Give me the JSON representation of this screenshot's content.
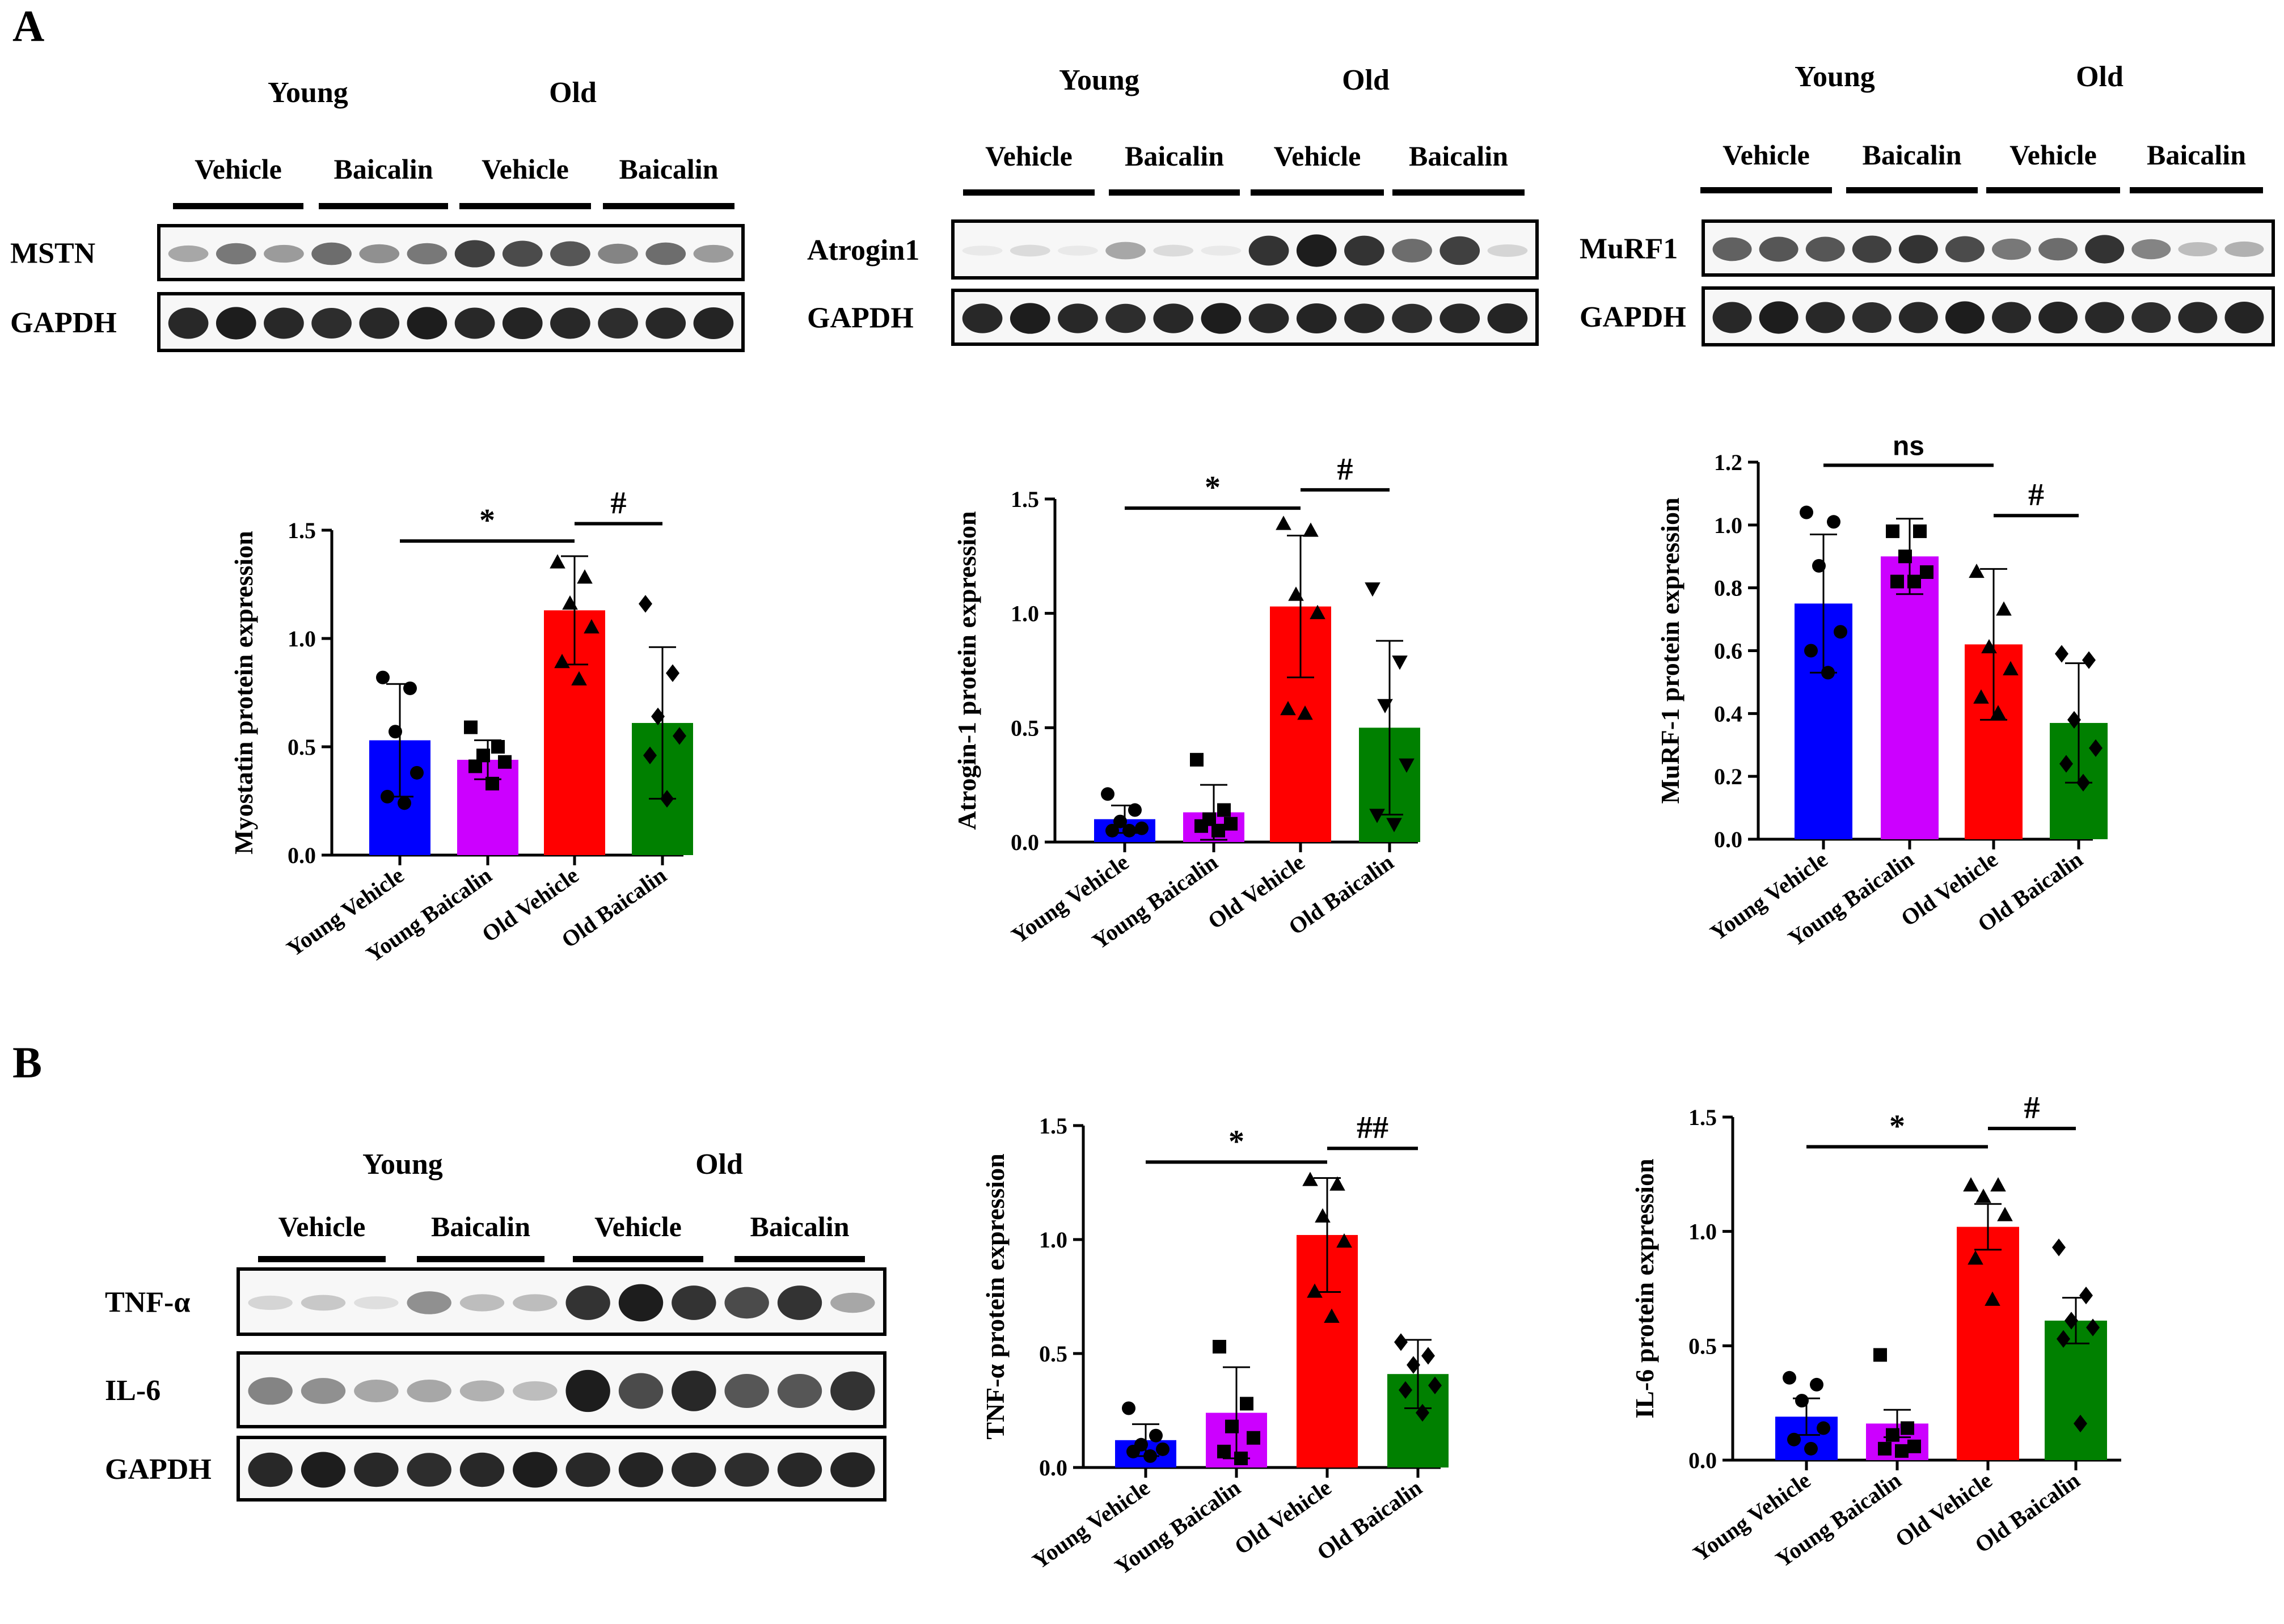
{
  "panels": {
    "a": "A",
    "b": "B"
  },
  "groups": {
    "young": "Young",
    "old": "Old"
  },
  "treatments": {
    "vehicle": "Vehicle",
    "baicalin": "Baicalin"
  },
  "blots": [
    {
      "id": "blot-myostatin",
      "rows": [
        "MSTN",
        "GAPDH"
      ]
    },
    {
      "id": "blot-atrogin",
      "rows": [
        "Atrogin1",
        "GAPDH"
      ]
    },
    {
      "id": "blot-murf",
      "rows": [
        "MuRF1",
        "GAPDH"
      ]
    },
    {
      "id": "blot-inflammation",
      "rows": [
        "TNF-α",
        "IL-6",
        "GAPDH"
      ]
    }
  ],
  "colors": {
    "young_vehicle": "#0000ff",
    "young_baicalin": "#cc00ff",
    "old_vehicle": "#ff0000",
    "old_baicalin": "#008000",
    "band": "#111111"
  },
  "chart_data": [
    {
      "id": "myostatin",
      "type": "bar",
      "categories": [
        "Young Vehicle",
        "Young Baicalin",
        "Old Vehicle",
        "Old Baicalin"
      ],
      "values": [
        0.53,
        0.44,
        1.13,
        0.61
      ],
      "sd": [
        0.26,
        0.09,
        0.25,
        0.35
      ],
      "points": [
        [
          0.82,
          0.77,
          0.57,
          0.38,
          0.27,
          0.24
        ],
        [
          0.59,
          0.5,
          0.46,
          0.43,
          0.41,
          0.33
        ],
        [
          1.35,
          1.28,
          1.16,
          1.05,
          0.89,
          0.81
        ],
        [
          1.16,
          0.84,
          0.64,
          0.55,
          0.46,
          0.26
        ]
      ],
      "markers": [
        "circle",
        "square",
        "triangle",
        "diamond"
      ],
      "ylabel": "Myostatin protein expression",
      "ylim": [
        0,
        1.5
      ],
      "yticks": [
        0.0,
        0.5,
        1.0,
        1.5
      ],
      "tick_labels": [
        "0.0",
        "0.5",
        "1.0",
        "1.5"
      ],
      "significance": [
        {
          "from": 0,
          "to": 2,
          "y": 1.45,
          "label": "*"
        },
        {
          "from": 2,
          "to": 3,
          "y": 1.53,
          "label": "#"
        }
      ]
    },
    {
      "id": "atrogin",
      "type": "bar",
      "categories": [
        "Young Vehicle",
        "Young Baicalin",
        "Old Vehicle",
        "Old Baicalin"
      ],
      "values": [
        0.1,
        0.13,
        1.03,
        0.5
      ],
      "sd": [
        0.06,
        0.12,
        0.31,
        0.38
      ],
      "points": [
        [
          0.21,
          0.14,
          0.09,
          0.06,
          0.05,
          0.05
        ],
        [
          0.36,
          0.14,
          0.1,
          0.08,
          0.07,
          0.05
        ],
        [
          1.39,
          1.36,
          1.08,
          1.0,
          0.58,
          0.56
        ],
        [
          1.11,
          0.79,
          0.6,
          0.34,
          0.12,
          0.08
        ]
      ],
      "markers": [
        "circle",
        "square",
        "triangle",
        "triangle-down"
      ],
      "ylabel": "Atrogin-1 protein expression",
      "ylim": [
        0,
        1.5
      ],
      "yticks": [
        0.0,
        0.5,
        1.0,
        1.5
      ],
      "tick_labels": [
        "0.0",
        "0.5",
        "1.0",
        "1.5"
      ],
      "significance": [
        {
          "from": 0,
          "to": 2,
          "y": 1.46,
          "label": "*"
        },
        {
          "from": 2,
          "to": 3,
          "y": 1.54,
          "label": "#"
        }
      ]
    },
    {
      "id": "murf1",
      "type": "bar",
      "categories": [
        "Young Vehicle",
        "Young Baicalin",
        "Old Vehicle",
        "Old Baicalin"
      ],
      "values": [
        0.75,
        0.9,
        0.62,
        0.37
      ],
      "sd": [
        0.22,
        0.12,
        0.24,
        0.19
      ],
      "points": [
        [
          1.04,
          1.01,
          0.87,
          0.66,
          0.6,
          0.53
        ],
        [
          0.98,
          0.98,
          0.9,
          0.85,
          0.82,
          0.82
        ],
        [
          0.85,
          0.73,
          0.61,
          0.54,
          0.45,
          0.4
        ],
        [
          0.59,
          0.57,
          0.38,
          0.29,
          0.24,
          0.18
        ]
      ],
      "markers": [
        "circle",
        "square",
        "triangle",
        "diamond"
      ],
      "ylabel": "MuRF-1 protein expression",
      "ylim": [
        0,
        1.2
      ],
      "yticks": [
        0.0,
        0.2,
        0.4,
        0.6,
        0.8,
        1.0,
        1.2
      ],
      "tick_labels": [
        "0.0",
        "0.2",
        "0.4",
        "0.6",
        "0.8",
        "1.0",
        "1.2"
      ],
      "significance": [
        {
          "from": 0,
          "to": 2,
          "y": 1.19,
          "label": "ns"
        },
        {
          "from": 2,
          "to": 3,
          "y": 1.03,
          "label": "#"
        }
      ]
    },
    {
      "id": "tnf",
      "type": "bar",
      "categories": [
        "Young Vehicle",
        "Young Baicalin",
        "Old Vehicle",
        "Old Baicalin"
      ],
      "values": [
        0.12,
        0.24,
        1.02,
        0.41
      ],
      "sd": [
        0.07,
        0.2,
        0.25,
        0.15
      ],
      "points": [
        [
          0.26,
          0.14,
          0.1,
          0.08,
          0.07,
          0.05
        ],
        [
          0.53,
          0.28,
          0.18,
          0.13,
          0.07,
          0.04
        ],
        [
          1.26,
          1.24,
          1.1,
          0.99,
          0.77,
          0.66
        ],
        [
          0.55,
          0.49,
          0.45,
          0.36,
          0.34,
          0.24
        ]
      ],
      "markers": [
        "circle",
        "square",
        "triangle",
        "diamond"
      ],
      "ylabel": "TNF-α protein expression",
      "ylim": [
        0,
        1.5
      ],
      "yticks": [
        0.0,
        0.5,
        1.0,
        1.5
      ],
      "tick_labels": [
        "0.0",
        "0.5",
        "1.0",
        "1.5"
      ],
      "significance": [
        {
          "from": 0,
          "to": 2,
          "y": 1.34,
          "label": "*"
        },
        {
          "from": 2,
          "to": 3,
          "y": 1.4,
          "label": "##"
        }
      ]
    },
    {
      "id": "il6",
      "type": "bar",
      "categories": [
        "Young Vehicle",
        "Young Baicalin",
        "Old Vehicle",
        "Old Baicalin"
      ],
      "values": [
        0.19,
        0.16,
        1.02,
        0.61
      ],
      "sd": [
        0.08,
        0.06,
        0.1,
        0.1
      ],
      "points": [
        [
          0.36,
          0.33,
          0.26,
          0.14,
          0.09,
          0.05
        ],
        [
          0.46,
          0.14,
          0.11,
          0.06,
          0.05,
          0.04
        ],
        [
          1.2,
          1.2,
          1.15,
          1.07,
          0.88,
          0.7
        ],
        [
          0.93,
          0.72,
          0.61,
          0.58,
          0.53,
          0.16
        ]
      ],
      "markers": [
        "circle",
        "square",
        "triangle",
        "diamond"
      ],
      "ylabel": "IL-6 protein expression",
      "ylim": [
        0,
        1.5
      ],
      "yticks": [
        0.0,
        0.5,
        1.0,
        1.5
      ],
      "tick_labels": [
        "0.0",
        "0.5",
        "1.0",
        "1.5"
      ],
      "significance": [
        {
          "from": 0,
          "to": 2,
          "y": 1.37,
          "label": "*"
        },
        {
          "from": 2,
          "to": 3,
          "y": 1.45,
          "label": "#"
        }
      ]
    }
  ]
}
